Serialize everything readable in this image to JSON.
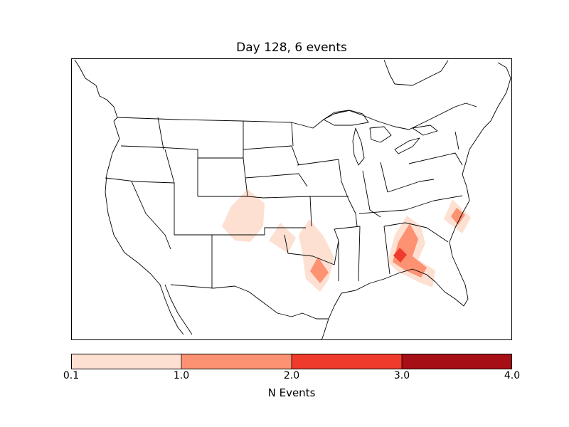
{
  "title": "Day 128, 6 events",
  "map": {
    "region": "North America (CONUS)",
    "fill_color": "#ffffff",
    "border_color": "#000000",
    "event_areas": [
      {
        "location": "SE Colorado / SW Kansas",
        "level": 0.1,
        "color": "#fee0d2"
      },
      {
        "location": "Oklahoma/Texas Panhandle",
        "level": 0.1,
        "color": "#fee0d2"
      },
      {
        "location": "Central Oklahoma",
        "level": 0.1,
        "color": "#fee0d2"
      },
      {
        "location": "North Texas",
        "level": 1.0,
        "color": "#fc9272"
      },
      {
        "location": "Southwest Georgia",
        "level": 2.0,
        "color": "#ef3b2c"
      },
      {
        "location": "Florida Panhandle",
        "level": 1.0,
        "color": "#fc9272"
      },
      {
        "location": "South Carolina coast",
        "level": 1.0,
        "color": "#fc9272"
      }
    ]
  },
  "colorbar": {
    "label": "N Events",
    "ticks": [
      "0.1",
      "1.0",
      "2.0",
      "3.0",
      "4.0"
    ],
    "bins": [
      {
        "from": 0.1,
        "to": 1.0,
        "color": "#fee0d2"
      },
      {
        "from": 1.0,
        "to": 2.0,
        "color": "#fc9272"
      },
      {
        "from": 2.0,
        "to": 3.0,
        "color": "#ef3b2c"
      },
      {
        "from": 3.0,
        "to": 4.0,
        "color": "#a50f15"
      }
    ]
  }
}
